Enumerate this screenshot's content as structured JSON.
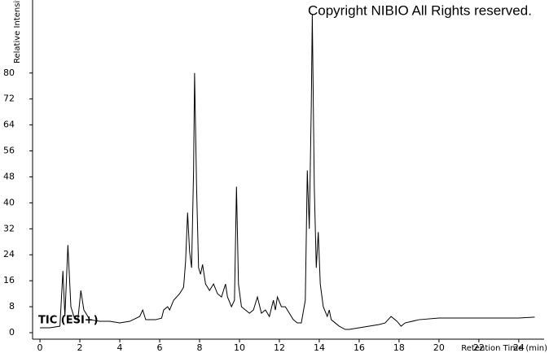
{
  "chart_data": {
    "type": "line",
    "title": "Copyright NIBIO All Rights reserved.",
    "annotation": "TIC (ESI+)",
    "x_label": "Retention Time (min)",
    "y_label": "Relative Intensity",
    "color": "#000000",
    "xlim": [
      -0.37,
      25.27
    ],
    "ylim": [
      -2,
      102.5
    ],
    "xticks": [
      0,
      2,
      4,
      6,
      8,
      10,
      12,
      14,
      16,
      18,
      20,
      22,
      24
    ],
    "yticks": [
      0,
      8,
      16,
      24,
      32,
      40,
      48,
      56,
      64,
      72,
      80
    ],
    "x": [
      0,
      0.5,
      1.0,
      1.15,
      1.25,
      1.4,
      1.55,
      1.7,
      1.9,
      2.05,
      2.2,
      2.5,
      3.0,
      3.5,
      4.0,
      4.5,
      5.0,
      5.15,
      5.3,
      5.8,
      6.1,
      6.2,
      6.4,
      6.5,
      6.7,
      7.0,
      7.2,
      7.3,
      7.4,
      7.5,
      7.6,
      7.7,
      7.75,
      7.85,
      7.95,
      8.05,
      8.15,
      8.3,
      8.5,
      8.7,
      8.9,
      9.1,
      9.3,
      9.4,
      9.6,
      9.75,
      9.85,
      9.95,
      10.1,
      10.3,
      10.5,
      10.7,
      10.9,
      11.1,
      11.3,
      11.5,
      11.7,
      11.8,
      11.9,
      12.1,
      12.3,
      12.5,
      12.7,
      12.9,
      13.1,
      13.3,
      13.4,
      13.5,
      13.6,
      13.65,
      13.75,
      13.85,
      13.95,
      14.05,
      14.2,
      14.4,
      14.5,
      14.6,
      14.8,
      15.0,
      15.3,
      15.5,
      16.0,
      16.5,
      17.0,
      17.3,
      17.6,
      17.9,
      18.1,
      18.3,
      19,
      20,
      21,
      22,
      23,
      24,
      24.8
    ],
    "values": [
      1.5,
      1.5,
      2,
      19,
      5,
      27,
      8,
      5,
      4,
      13,
      7,
      4,
      3.5,
      3.5,
      3,
      3.5,
      5,
      7,
      4,
      4,
      4.5,
      7,
      8,
      7,
      10,
      12,
      14,
      22,
      37,
      25,
      20,
      50,
      80,
      45,
      20,
      18,
      21,
      15,
      13,
      15,
      12,
      11,
      15,
      11,
      8,
      10,
      45,
      15,
      8,
      7,
      6,
      7,
      11,
      6,
      7,
      5,
      10,
      7,
      11,
      8,
      8,
      6,
      4,
      3,
      3,
      10,
      50,
      32,
      70,
      98,
      45,
      20,
      31,
      15,
      8,
      5,
      7,
      4,
      3,
      2,
      1,
      1,
      1.5,
      2,
      2.5,
      3,
      5,
      3.5,
      2,
      3,
      4,
      4.5,
      4.5,
      4.5,
      4.5,
      4.5,
      4.8
    ]
  }
}
